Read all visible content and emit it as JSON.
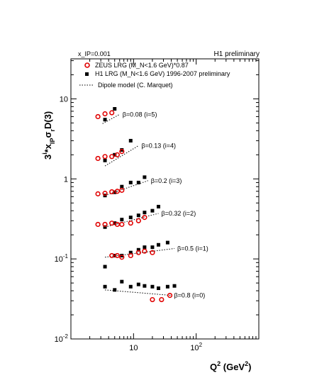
{
  "chart_data": {
    "type": "scatter",
    "title": "",
    "x_scale": "log",
    "y_scale": "log",
    "xlim": [
      1,
      1000
    ],
    "ylim": [
      0.01,
      31.6
    ],
    "xlabel": "Q² (GeV²)",
    "ylabel": "3^i × x_IP σ_r^D(3)",
    "header_left": "x_IP=0.001",
    "header_right": "H1 preliminary",
    "x_ticks": [
      {
        "value": 10,
        "label": "10"
      },
      {
        "value": 100,
        "label": "10^2"
      }
    ],
    "y_ticks": [
      {
        "value": 0.01,
        "label": "10^-2"
      },
      {
        "value": 0.1,
        "label": "10^-1"
      },
      {
        "value": 1,
        "label": "1"
      },
      {
        "value": 10,
        "label": "10"
      }
    ],
    "legend": {
      "position": "top-left",
      "entries": [
        {
          "marker": "open-circle-red",
          "label": "ZEUS LRG  (M_N<1.6 GeV)*0.87"
        },
        {
          "marker": "filled-square-black",
          "label": "H1 LRG  (M_N<1.6 GeV) 1996-2007 preliminary"
        },
        {
          "marker": "dotted-line",
          "label": "Dipole model (C. Marquet)"
        }
      ]
    },
    "bins": [
      {
        "label": "β=0.08 (i=5)",
        "zeus": [
          [
            2.7,
            6.0
          ],
          [
            3.5,
            6.5
          ],
          [
            4.5,
            6.7
          ]
        ],
        "h1": [
          [
            3.5,
            5.5
          ],
          [
            5,
            7.5
          ]
        ],
        "dipole": [
          [
            3.2,
            4.9
          ],
          [
            6,
            6.4
          ]
        ]
      },
      {
        "label": "β=0.13 (i=4)",
        "zeus": [
          [
            2.7,
            1.8
          ],
          [
            3.5,
            1.9
          ],
          [
            4.5,
            1.9
          ],
          [
            5.5,
            2.0
          ],
          [
            6.5,
            2.2
          ]
        ],
        "h1": [
          [
            3.5,
            1.7
          ],
          [
            5,
            2.0
          ],
          [
            6.5,
            2.3
          ],
          [
            9,
            3.0
          ]
        ],
        "dipole": [
          [
            3.5,
            1.45
          ],
          [
            12,
            2.6
          ]
        ]
      },
      {
        "label": "β=0.2 (i=3)",
        "zeus": [
          [
            2.7,
            0.65
          ],
          [
            3.5,
            0.66
          ],
          [
            4.5,
            0.69
          ],
          [
            5.5,
            0.7
          ],
          [
            6.5,
            0.72
          ]
        ],
        "h1": [
          [
            3.5,
            0.62
          ],
          [
            5,
            0.68
          ],
          [
            6.5,
            0.8
          ],
          [
            9,
            0.9
          ],
          [
            12,
            0.9
          ],
          [
            15,
            1.05
          ]
        ],
        "dipole": [
          [
            3.5,
            0.62
          ],
          [
            17,
            0.95
          ]
        ]
      },
      {
        "label": "β=0.32 (i=2)",
        "zeus": [
          [
            2.7,
            0.27
          ],
          [
            3.5,
            0.27
          ],
          [
            4.5,
            0.28
          ],
          [
            5.5,
            0.27
          ],
          [
            6.5,
            0.27
          ],
          [
            9,
            0.28
          ],
          [
            12,
            0.3
          ],
          [
            15,
            0.33
          ]
        ],
        "h1": [
          [
            3.5,
            0.25
          ],
          [
            5,
            0.28
          ],
          [
            6.5,
            0.31
          ],
          [
            9,
            0.33
          ],
          [
            12,
            0.35
          ],
          [
            15,
            0.38
          ],
          [
            20,
            0.4
          ],
          [
            25,
            0.45
          ]
        ],
        "dipole": [
          [
            3.5,
            0.25
          ],
          [
            25,
            0.37
          ]
        ]
      },
      {
        "label": "β=0.5 (i=1)",
        "zeus": [
          [
            4.5,
            0.11
          ],
          [
            5.5,
            0.11
          ],
          [
            6.5,
            0.105
          ],
          [
            9,
            0.11
          ],
          [
            12,
            0.12
          ],
          [
            15,
            0.125
          ],
          [
            20,
            0.12
          ]
        ],
        "h1": [
          [
            3.5,
            0.08
          ],
          [
            5,
            0.11
          ],
          [
            6.5,
            0.11
          ],
          [
            9,
            0.12
          ],
          [
            12,
            0.13
          ],
          [
            15,
            0.14
          ],
          [
            20,
            0.14
          ],
          [
            25,
            0.15
          ],
          [
            35,
            0.16
          ]
        ],
        "dipole": [
          [
            3.5,
            0.105
          ],
          [
            45,
            0.135
          ]
        ]
      },
      {
        "label": "β=0.8 (i=0)",
        "zeus": [
          [
            20,
            0.031
          ],
          [
            28,
            0.031
          ],
          [
            38,
            0.035
          ]
        ],
        "h1": [
          [
            3.5,
            0.045
          ],
          [
            5,
            0.041
          ],
          [
            6.5,
            0.052
          ],
          [
            9,
            0.045
          ],
          [
            12,
            0.048
          ],
          [
            15,
            0.046
          ],
          [
            20,
            0.045
          ],
          [
            25,
            0.043
          ],
          [
            35,
            0.045
          ],
          [
            45,
            0.046
          ]
        ],
        "dipole": [
          [
            3.5,
            0.041
          ],
          [
            40,
            0.035
          ]
        ]
      }
    ]
  }
}
